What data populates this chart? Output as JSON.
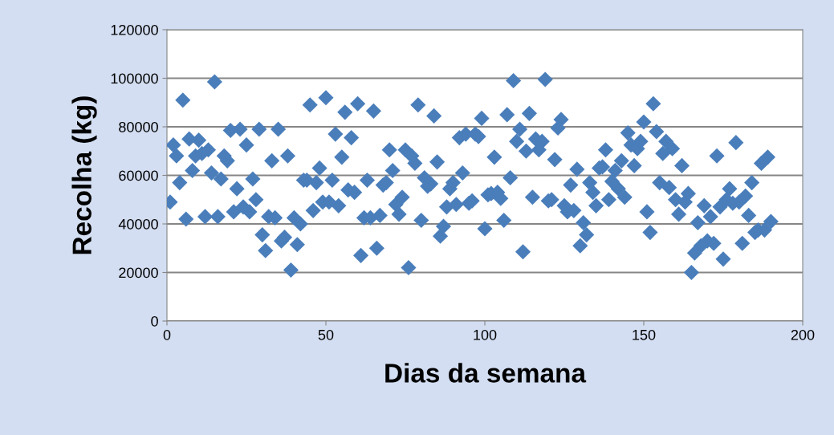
{
  "chart_data": {
    "type": "scatter",
    "xlabel": "Dias da semana",
    "ylabel": "Recolha (kg)",
    "marker": "diamond",
    "grid": "y",
    "legend": false,
    "xlim": [
      0,
      200
    ],
    "xticks": [
      0,
      50,
      100,
      150,
      200
    ],
    "ylim": [
      0,
      120000
    ],
    "yticks": [
      0,
      20000,
      40000,
      60000,
      80000,
      100000,
      120000
    ],
    "series": [
      {
        "color": "#4a7ebb",
        "x": [
          1,
          2,
          3,
          4,
          5,
          6,
          7,
          8,
          9,
          10,
          11,
          12,
          13,
          14,
          15,
          16,
          17,
          18,
          19,
          20,
          21,
          22,
          23,
          24,
          25,
          26,
          27,
          28,
          29,
          30,
          31,
          32,
          33,
          34,
          35,
          36,
          37,
          38,
          39,
          40,
          41,
          42,
          43,
          44,
          45,
          46,
          47,
          48,
          49,
          50,
          51,
          52,
          53,
          54,
          55,
          56,
          57,
          58,
          59,
          60,
          61,
          62,
          63,
          64,
          65,
          66,
          67,
          68,
          69,
          70,
          71,
          72,
          73,
          74,
          75,
          76,
          77,
          78,
          79,
          80,
          81,
          82,
          83,
          84,
          85,
          86,
          87,
          88,
          89,
          90,
          91,
          92,
          93,
          94,
          95,
          96,
          97,
          98,
          99,
          100,
          101,
          102,
          103,
          104,
          105,
          106,
          107,
          108,
          109,
          110,
          111,
          112,
          113,
          114,
          115,
          116,
          117,
          118,
          119,
          120,
          121,
          122,
          123,
          124,
          125,
          126,
          127,
          128,
          129,
          130,
          131,
          132,
          133,
          134,
          135,
          136,
          137,
          138,
          139,
          140,
          141,
          142,
          143,
          144,
          145,
          146,
          147,
          148,
          149,
          150,
          151,
          152,
          153,
          154,
          155,
          156,
          157,
          158,
          159,
          160,
          161,
          162,
          163,
          164,
          165,
          166,
          167,
          168,
          169,
          170,
          171,
          172,
          173,
          174,
          175,
          176,
          177,
          178,
          179,
          180,
          181,
          182,
          183,
          184,
          185,
          186,
          187,
          188,
          189,
          190
        ],
        "values": [
          49000,
          72500,
          68000,
          57000,
          91000,
          42000,
          75000,
          62000,
          68000,
          74500,
          69000,
          43000,
          70500,
          61000,
          98500,
          43000,
          58500,
          68000,
          66000,
          78500,
          45000,
          54500,
          79000,
          47000,
          72500,
          45000,
          58500,
          50000,
          79000,
          35500,
          29000,
          43000,
          66000,
          42500,
          79000,
          33000,
          34500,
          68000,
          21000,
          42500,
          31500,
          40000,
          58000,
          58000,
          89000,
          45500,
          57000,
          63000,
          49000,
          92000,
          49000,
          58000,
          77000,
          47500,
          67500,
          86000,
          54000,
          75500,
          53000,
          89500,
          27000,
          42500,
          58000,
          42500,
          86500,
          30000,
          43500,
          56000,
          57000,
          70500,
          62000,
          48000,
          44000,
          51000,
          70500,
          22000,
          68000,
          65000,
          89000,
          41500,
          59000,
          55500,
          56500,
          84500,
          65500,
          35000,
          39000,
          47000,
          54500,
          57000,
          48000,
          75500,
          61000,
          77000,
          48500,
          49500,
          77000,
          76000,
          83500,
          38000,
          52000,
          52500,
          67500,
          53000,
          50500,
          41500,
          85000,
          59000,
          99000,
          74000,
          79000,
          28500,
          70000,
          85500,
          51000,
          75000,
          70500,
          74000,
          99500,
          49500,
          50000,
          66500,
          79500,
          83000,
          47500,
          45000,
          56000,
          45500,
          62500,
          31000,
          40500,
          35500,
          57000,
          53000,
          47500,
          63000,
          63500,
          70500,
          50000,
          57500,
          62000,
          54500,
          66000,
          51000,
          77500,
          72500,
          64000,
          71000,
          74000,
          82000,
          45000,
          36500,
          89500,
          78000,
          57000,
          69000,
          74000,
          55000,
          71000,
          50000,
          44000,
          64000,
          49000,
          52500,
          20000,
          28000,
          40500,
          31000,
          47500,
          33000,
          43000,
          32000,
          68000,
          47000,
          25500,
          50000,
          54500,
          48500,
          73500,
          49000,
          32000,
          51500,
          43500,
          57000,
          36500,
          37500,
          65000,
          37500,
          67500,
          41000
        ]
      }
    ]
  }
}
